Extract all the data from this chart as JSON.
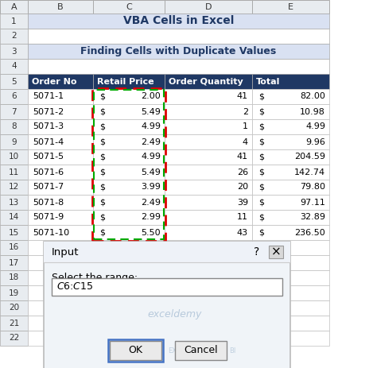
{
  "title1": "VBA Cells in Excel",
  "title2": "Finding Cells with Duplicate Values",
  "header": [
    "Order No",
    "Retail Price",
    "Order Quantity",
    "Total"
  ],
  "orders": [
    "5071-1",
    "5071-2",
    "5071-3",
    "5071-4",
    "5071-5",
    "5071-6",
    "5071-7",
    "5071-8",
    "5071-9",
    "5071-10"
  ],
  "prices": [
    2.0,
    5.49,
    4.99,
    2.49,
    4.99,
    5.49,
    3.99,
    2.49,
    2.99,
    5.5
  ],
  "quantities": [
    41,
    2,
    1,
    4,
    41,
    26,
    20,
    39,
    11,
    43
  ],
  "totals": [
    82.0,
    10.98,
    4.99,
    9.96,
    204.59,
    142.74,
    79.8,
    97.11,
    32.89,
    236.5
  ],
  "col_letters": [
    "A",
    "B",
    "C",
    "D",
    "E"
  ],
  "n_rows": 22,
  "header_bg": "#1F3864",
  "header_fg": "#FFFFFF",
  "title1_bg": "#D9E1F2",
  "title2_bg": "#D9E1F2",
  "title2_fg": "#1F3864",
  "row_bg": "#FFFFFF",
  "grid_color": "#BFBFBF",
  "row_num_bg": "#E8ECF0",
  "col_hdr_bg": "#E8ECF0",
  "input_text": "$C$6:$C$15",
  "watermark": "exceldemy"
}
